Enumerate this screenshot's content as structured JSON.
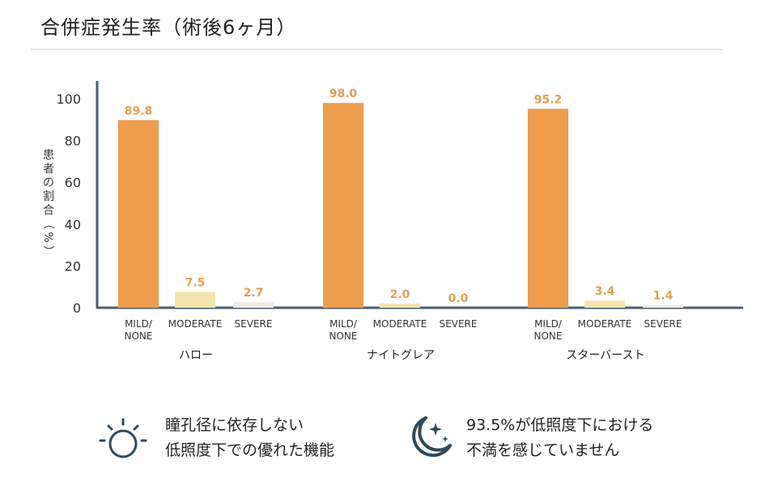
{
  "title": "合併症発生率（術後6ヶ月）",
  "chart_data": {
    "type": "bar",
    "ylabel": "患者の割合（%）",
    "ylim": [
      0,
      100
    ],
    "yticks": [
      0,
      20,
      40,
      60,
      80,
      100
    ],
    "groups": [
      {
        "label": "ハロー",
        "bars": [
          {
            "category": "MILD/\nNONE",
            "value": 89.8,
            "label": "89.8"
          },
          {
            "category": "MODERATE",
            "value": 7.5,
            "label": "7.5"
          },
          {
            "category": "SEVERE",
            "value": 2.7,
            "label": "2.7"
          }
        ]
      },
      {
        "label": "ナイトグレア",
        "bars": [
          {
            "category": "MILD/\nNONE",
            "value": 98.0,
            "label": "98.0"
          },
          {
            "category": "MODERATE",
            "value": 2.0,
            "label": "2.0"
          },
          {
            "category": "SEVERE",
            "value": 0.0,
            "label": "0.0"
          }
        ]
      },
      {
        "label": "スターバースト",
        "bars": [
          {
            "category": "MILD/\nNONE",
            "value": 95.2,
            "label": "95.2"
          },
          {
            "category": "MODERATE",
            "value": 3.4,
            "label": "3.4"
          },
          {
            "category": "SEVERE",
            "value": 1.4,
            "label": "1.4"
          }
        ]
      }
    ],
    "colors": {
      "MILD/NONE": "#ee9d4c",
      "MODERATE": "#f5e3ad",
      "SEVERE": "#efece4",
      "value_label": "#e0a050",
      "axis": "#4a5e6d"
    }
  },
  "footer": {
    "left_text": "瞳孔径に依存しない\n低照度下での優れた機能",
    "right_text": "93.5%が低照度下における\n不満を感じていません",
    "left_icon": "sun-icon",
    "right_icon": "moon-stars-icon",
    "icon_color": "#2d4a5c"
  }
}
